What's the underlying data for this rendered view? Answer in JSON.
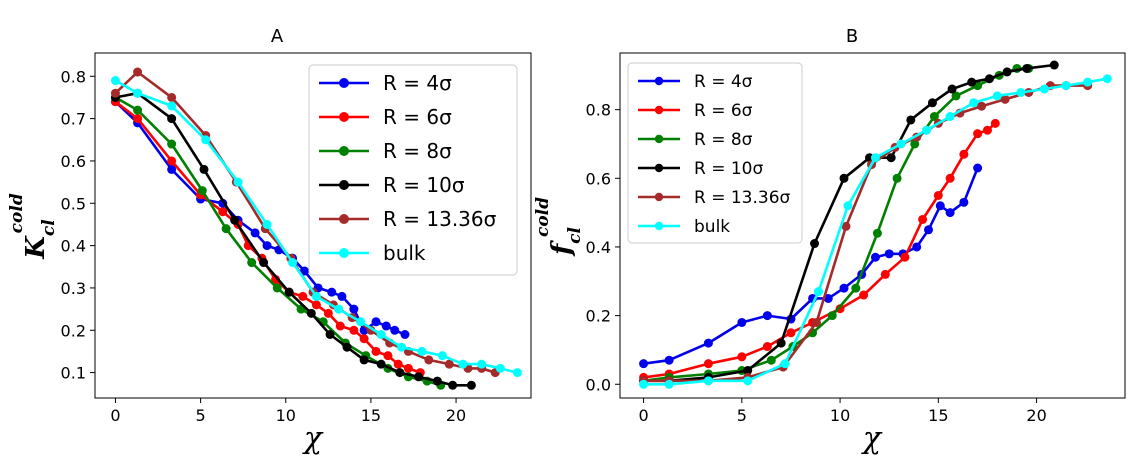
{
  "colors": {
    "R4": "#0000ee",
    "R6": "#ff0000",
    "R8": "#008000",
    "R10": "#000000",
    "R1336": "#a52a2a",
    "bulk": "#00ffff"
  },
  "chart_data": [
    {
      "type": "line",
      "title": "A",
      "xlabel": "χ",
      "ylabel": "K",
      "ylabel_sub": "cl",
      "ylabel_sup": "cold",
      "xlim": [
        -1.2,
        24.4
      ],
      "ylim": [
        0.04,
        0.855
      ],
      "xticks": [
        0,
        5,
        10,
        15,
        20
      ],
      "yticks": [
        0.1,
        0.2,
        0.3,
        0.4,
        0.5,
        0.6,
        0.7,
        0.8
      ],
      "xtick_labels": [
        "0",
        "5",
        "10",
        "15",
        "20"
      ],
      "ytick_labels": [
        "0.1",
        "0.2",
        "0.3",
        "0.4",
        "0.5",
        "0.6",
        "0.7",
        "0.8"
      ],
      "legend": {
        "placement": "top-right",
        "labels": [
          "R = 4σ",
          "R = 6σ",
          "R = 8σ",
          "R = 10σ",
          "R = 13.36σ",
          "bulk"
        ]
      },
      "series": [
        {
          "name": "R = 4σ",
          "color_key": "R4",
          "x": [
            0,
            1.3,
            3.3,
            5.0,
            6.3,
            7.2,
            8.2,
            8.9,
            9.6,
            10.4,
            11.1,
            11.9,
            12.7,
            13.3,
            14.0,
            14.6,
            15.3,
            15.9,
            16.4,
            17.0
          ],
          "y": [
            0.74,
            0.69,
            0.58,
            0.51,
            0.5,
            0.46,
            0.43,
            0.4,
            0.39,
            0.37,
            0.34,
            0.3,
            0.29,
            0.28,
            0.25,
            0.2,
            0.22,
            0.21,
            0.2,
            0.19
          ]
        },
        {
          "name": "R = 6σ",
          "color_key": "R6",
          "x": [
            0,
            1.3,
            3.3,
            5.0,
            6.3,
            7.2,
            7.8,
            8.6,
            9.4,
            10.2,
            11.0,
            11.8,
            12.5,
            13.2,
            14.0,
            14.6,
            15.3,
            16.0,
            16.6,
            17.2,
            17.9
          ],
          "y": [
            0.74,
            0.7,
            0.6,
            0.52,
            0.48,
            0.45,
            0.4,
            0.37,
            0.32,
            0.29,
            0.28,
            0.26,
            0.24,
            0.21,
            0.2,
            0.18,
            0.15,
            0.14,
            0.12,
            0.11,
            0.1
          ]
        },
        {
          "name": "R = 8σ",
          "color_key": "R8",
          "x": [
            0,
            1.3,
            3.3,
            5.1,
            6.5,
            8.0,
            9.5,
            10.9,
            12.2,
            13.5,
            14.7,
            16.0,
            17.2,
            18.3,
            19.1
          ],
          "y": [
            0.75,
            0.72,
            0.64,
            0.53,
            0.44,
            0.36,
            0.3,
            0.25,
            0.22,
            0.17,
            0.14,
            0.11,
            0.09,
            0.08,
            0.07
          ]
        },
        {
          "name": "R = 10σ",
          "color_key": "R10",
          "x": [
            0,
            1.3,
            3.3,
            5.2,
            7.0,
            8.7,
            10.2,
            11.5,
            12.6,
            13.6,
            14.6,
            15.6,
            16.7,
            17.8,
            18.9,
            19.8,
            20.9
          ],
          "y": [
            0.75,
            0.76,
            0.7,
            0.58,
            0.46,
            0.36,
            0.29,
            0.24,
            0.19,
            0.16,
            0.13,
            0.12,
            0.1,
            0.09,
            0.08,
            0.07,
            0.07
          ]
        },
        {
          "name": "R = 13.36σ",
          "color_key": "R1336",
          "x": [
            0,
            1.3,
            3.3,
            5.3,
            7.1,
            8.8,
            10.3,
            11.6,
            12.8,
            13.9,
            15.0,
            16.1,
            17.2,
            18.4,
            19.6,
            20.7,
            21.5,
            22.3
          ],
          "y": [
            0.76,
            0.81,
            0.75,
            0.66,
            0.55,
            0.44,
            0.37,
            0.29,
            0.26,
            0.23,
            0.2,
            0.17,
            0.15,
            0.13,
            0.12,
            0.11,
            0.11,
            0.1
          ]
        },
        {
          "name": "bulk",
          "color_key": "bulk",
          "x": [
            0,
            1.3,
            3.3,
            5.3,
            7.2,
            8.9,
            10.4,
            11.8,
            13.1,
            14.4,
            15.6,
            16.8,
            18.0,
            19.2,
            20.4,
            21.5,
            22.6,
            23.6
          ],
          "y": [
            0.79,
            0.76,
            0.73,
            0.65,
            0.55,
            0.45,
            0.36,
            0.28,
            0.25,
            0.22,
            0.19,
            0.16,
            0.15,
            0.14,
            0.12,
            0.12,
            0.11,
            0.1
          ]
        }
      ]
    },
    {
      "type": "line",
      "title": "B",
      "xlabel": "χ",
      "ylabel": "f",
      "ylabel_sub": "cl",
      "ylabel_sup": "cold",
      "xlim": [
        -1.2,
        24.5
      ],
      "ylim": [
        -0.04,
        0.965
      ],
      "xticks": [
        0,
        5,
        10,
        15,
        20
      ],
      "yticks": [
        0.0,
        0.2,
        0.4,
        0.6,
        0.8
      ],
      "xtick_labels": [
        "0",
        "5",
        "10",
        "15",
        "20"
      ],
      "ytick_labels": [
        "0.0",
        "0.2",
        "0.4",
        "0.6",
        "0.8"
      ],
      "legend": {
        "placement": "top-left",
        "labels": [
          "R = 4σ",
          "R = 6σ",
          "R = 8σ",
          "R = 10σ",
          "R = 13.36σ",
          "bulk"
        ]
      },
      "series": [
        {
          "name": "R = 4σ",
          "color_key": "R4",
          "x": [
            0,
            1.3,
            3.3,
            5.0,
            6.3,
            7.5,
            8.6,
            9.4,
            10.2,
            11.1,
            11.8,
            12.5,
            13.2,
            13.9,
            14.5,
            15.1,
            15.6,
            16.3,
            17.0
          ],
          "y": [
            0.06,
            0.07,
            0.12,
            0.18,
            0.2,
            0.19,
            0.25,
            0.25,
            0.28,
            0.32,
            0.37,
            0.38,
            0.38,
            0.4,
            0.45,
            0.52,
            0.5,
            0.53,
            0.63
          ]
        },
        {
          "name": "R = 6σ",
          "color_key": "R6",
          "x": [
            0,
            1.3,
            3.3,
            5.0,
            6.3,
            7.5,
            8.6,
            10.0,
            11.2,
            12.3,
            13.3,
            14.2,
            15.0,
            15.6,
            16.3,
            17.0,
            17.5,
            17.9
          ],
          "y": [
            0.02,
            0.03,
            0.06,
            0.08,
            0.11,
            0.15,
            0.18,
            0.22,
            0.26,
            0.32,
            0.37,
            0.48,
            0.55,
            0.6,
            0.67,
            0.73,
            0.74,
            0.76
          ]
        },
        {
          "name": "R = 8σ",
          "color_key": "R8",
          "x": [
            0,
            1.3,
            3.3,
            5.0,
            6.5,
            7.6,
            8.6,
            9.6,
            10.8,
            11.9,
            12.9,
            13.8,
            14.8,
            15.9,
            17.0,
            18.1,
            19.0,
            19.6
          ],
          "y": [
            0.01,
            0.02,
            0.03,
            0.04,
            0.07,
            0.11,
            0.15,
            0.2,
            0.28,
            0.44,
            0.6,
            0.7,
            0.78,
            0.84,
            0.87,
            0.9,
            0.92,
            0.92
          ]
        },
        {
          "name": "R = 10σ",
          "color_key": "R10",
          "x": [
            0,
            1.3,
            3.3,
            5.3,
            7.0,
            8.7,
            10.2,
            11.5,
            12.6,
            13.6,
            14.7,
            15.7,
            16.7,
            17.6,
            18.5,
            19.5,
            20.9
          ],
          "y": [
            0.01,
            0.01,
            0.02,
            0.04,
            0.12,
            0.41,
            0.6,
            0.66,
            0.66,
            0.77,
            0.82,
            0.86,
            0.88,
            0.89,
            0.91,
            0.92,
            0.93
          ]
        },
        {
          "name": "R = 13.36σ",
          "color_key": "R1336",
          "x": [
            0,
            1.3,
            3.3,
            5.3,
            7.1,
            8.8,
            10.3,
            11.6,
            12.8,
            13.9,
            15.0,
            16.1,
            17.2,
            18.4,
            19.6,
            20.7,
            21.5,
            22.6
          ],
          "y": [
            0.01,
            0.01,
            0.01,
            0.02,
            0.05,
            0.18,
            0.46,
            0.64,
            0.69,
            0.72,
            0.76,
            0.79,
            0.81,
            0.83,
            0.85,
            0.87,
            0.87,
            0.87
          ]
        },
        {
          "name": "bulk",
          "color_key": "bulk",
          "x": [
            0,
            1.3,
            3.3,
            5.3,
            7.2,
            8.9,
            10.4,
            11.8,
            13.1,
            14.4,
            15.6,
            16.8,
            18.0,
            19.2,
            20.4,
            21.5,
            22.6,
            23.6
          ],
          "y": [
            0.0,
            0.0,
            0.01,
            0.01,
            0.06,
            0.27,
            0.52,
            0.66,
            0.7,
            0.74,
            0.78,
            0.82,
            0.84,
            0.85,
            0.86,
            0.87,
            0.88,
            0.89
          ]
        }
      ]
    }
  ]
}
